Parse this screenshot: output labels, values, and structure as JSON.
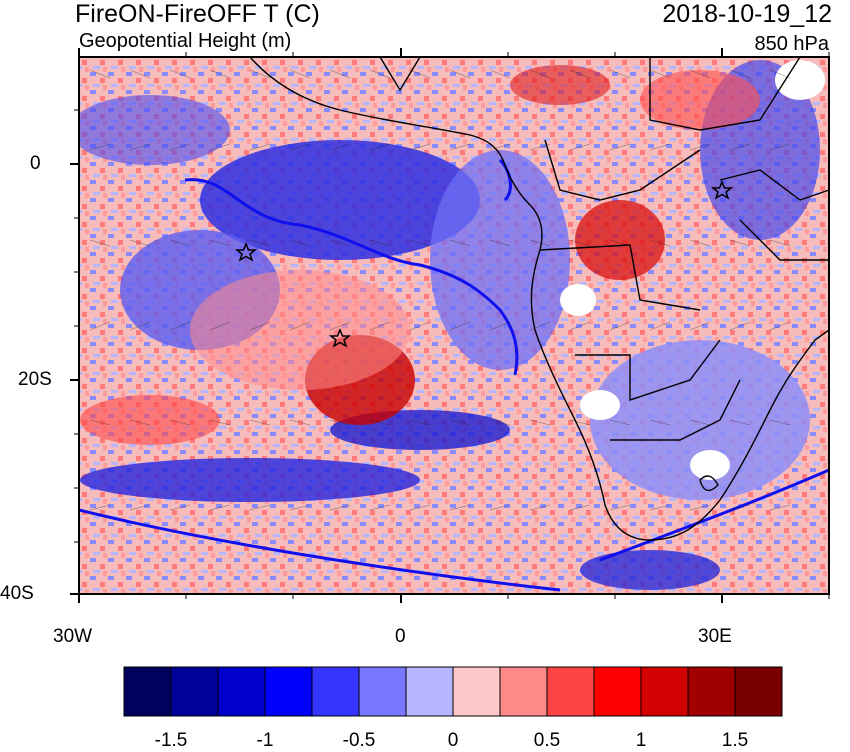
{
  "titles": {
    "left_main": "FireON-FireOFF T (C)",
    "left_sub": "Geopotential Height (m)",
    "right_main": "2018-10-19_12",
    "right_sub": "850 hPa"
  },
  "axes": {
    "lon_labels": [
      "30W",
      "0",
      "30E"
    ],
    "lat_labels": [
      "0",
      "20S",
      "40S"
    ]
  },
  "colorbar": {
    "colors": [
      "#00005e",
      "#00009a",
      "#0000cc",
      "#0000ff",
      "#3535ff",
      "#7777ff",
      "#b6b6ff",
      "#ffc8c8",
      "#ff8888",
      "#ff4444",
      "#ff0000",
      "#d20000",
      "#a00000",
      "#7a0000"
    ],
    "labels": [
      "-1.5",
      "-1",
      "-0.5",
      "0",
      "0.5",
      "1",
      "1.5"
    ]
  },
  "markers": {
    "stars": 3
  }
}
